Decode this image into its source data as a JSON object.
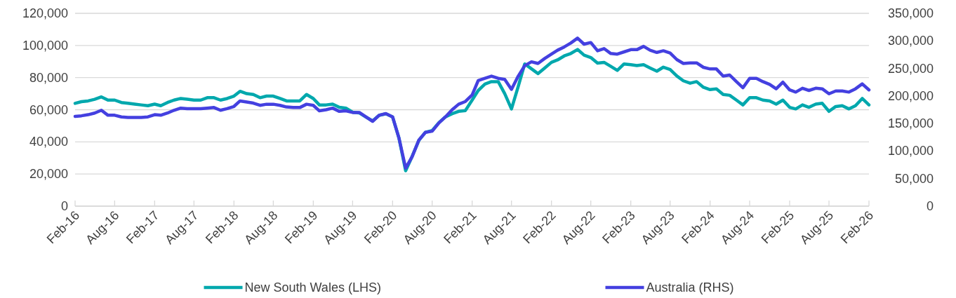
{
  "chart_data": {
    "type": "line",
    "x": [
      "2016-02",
      "2016-03",
      "2016-04",
      "2016-05",
      "2016-06",
      "2016-07",
      "2016-08",
      "2016-09",
      "2016-10",
      "2016-11",
      "2016-12",
      "2017-01",
      "2017-02",
      "2017-03",
      "2017-04",
      "2017-05",
      "2017-06",
      "2017-07",
      "2017-08",
      "2017-09",
      "2017-10",
      "2017-11",
      "2017-12",
      "2018-01",
      "2018-02",
      "2018-03",
      "2018-04",
      "2018-05",
      "2018-06",
      "2018-07",
      "2018-08",
      "2018-09",
      "2018-10",
      "2018-11",
      "2018-12",
      "2019-01",
      "2019-02",
      "2019-03",
      "2019-04",
      "2019-05",
      "2019-06",
      "2019-07",
      "2019-08",
      "2019-09",
      "2019-10",
      "2019-11",
      "2019-12",
      "2020-01",
      "2020-02",
      "2020-03",
      "2020-04",
      "2020-05",
      "2020-06",
      "2020-07",
      "2020-08",
      "2020-09",
      "2020-10",
      "2020-11",
      "2020-12",
      "2021-01",
      "2021-02",
      "2021-03",
      "2021-04",
      "2021-05",
      "2021-06",
      "2021-07",
      "2021-08",
      "2021-09",
      "2021-10",
      "2021-11",
      "2021-12",
      "2022-01",
      "2022-02",
      "2022-03",
      "2022-04",
      "2022-05",
      "2022-06",
      "2022-07",
      "2022-08",
      "2022-09",
      "2022-10",
      "2022-11",
      "2022-12",
      "2023-01",
      "2023-02",
      "2023-03",
      "2023-04",
      "2023-05",
      "2023-06",
      "2023-07",
      "2023-08",
      "2023-09",
      "2023-10",
      "2023-11",
      "2023-12",
      "2024-01",
      "2024-02",
      "2024-03",
      "2024-04",
      "2024-05",
      "2024-06",
      "2024-07",
      "2024-08",
      "2024-09",
      "2024-10",
      "2024-11",
      "2024-12",
      "2025-01",
      "2025-02",
      "2025-03",
      "2025-04",
      "2025-05",
      "2025-06",
      "2025-07",
      "2025-08",
      "2025-09",
      "2025-10",
      "2025-11",
      "2025-12",
      "2026-01",
      "2026-02"
    ],
    "xlim": [
      "2016-02",
      "2026-02"
    ],
    "xticks": [
      {
        "value": "2016-02",
        "label": "Feb-16"
      },
      {
        "value": "2016-08",
        "label": "Aug-16"
      },
      {
        "value": "2017-02",
        "label": "Feb-17"
      },
      {
        "value": "2017-08",
        "label": "Aug-17"
      },
      {
        "value": "2018-02",
        "label": "Feb-18"
      },
      {
        "value": "2018-08",
        "label": "Aug-18"
      },
      {
        "value": "2019-02",
        "label": "Feb-19"
      },
      {
        "value": "2019-08",
        "label": "Aug-19"
      },
      {
        "value": "2020-02",
        "label": "Feb-20"
      },
      {
        "value": "2020-08",
        "label": "Aug-20"
      },
      {
        "value": "2021-02",
        "label": "Feb-21"
      },
      {
        "value": "2021-08",
        "label": "Aug-21"
      },
      {
        "value": "2022-02",
        "label": "Feb-22"
      },
      {
        "value": "2022-08",
        "label": "Aug-22"
      },
      {
        "value": "2023-02",
        "label": "Feb-23"
      },
      {
        "value": "2023-08",
        "label": "Aug-23"
      },
      {
        "value": "2024-02",
        "label": "Feb-24"
      },
      {
        "value": "2024-08",
        "label": "Aug-24"
      },
      {
        "value": "2025-02",
        "label": "Feb-25"
      },
      {
        "value": "2025-08",
        "label": "Aug-25"
      },
      {
        "value": "2026-02",
        "label": "Feb-26"
      }
    ],
    "ylim": [
      0,
      120000
    ],
    "yticks": [
      0,
      {
        "value": 20000,
        "label": "20,000"
      },
      {
        "value": 40000,
        "label": "40,000"
      },
      {
        "value": 60000,
        "label": "60,000"
      },
      {
        "value": 80000,
        "label": "80,000"
      },
      {
        "value": 100000,
        "label": "100,000"
      },
      {
        "value": 120000,
        "label": "120,000"
      }
    ],
    "y2lim": [
      0,
      350000
    ],
    "y2ticks": [
      0,
      {
        "value": 50000,
        "label": "50,000"
      },
      {
        "value": 100000,
        "label": "100,000"
      },
      {
        "value": 150000,
        "label": "150,000"
      },
      {
        "value": 200000,
        "label": "200,000"
      },
      {
        "value": 250000,
        "label": "250,000"
      },
      {
        "value": 300000,
        "label": "300,000"
      },
      {
        "value": 350000,
        "label": "350,000"
      }
    ],
    "grid": "y",
    "legend": "bottom",
    "series": [
      {
        "name": "New South Wales (LHS)",
        "color": "#00a8ad",
        "values": [
          64000,
          65000,
          65500,
          66500,
          68000,
          66000,
          66000,
          64500,
          64000,
          63500,
          63000,
          62500,
          63500,
          62500,
          64500,
          66000,
          67000,
          66500,
          66000,
          66000,
          67500,
          67500,
          66000,
          67000,
          68500,
          71500,
          70000,
          69500,
          67500,
          68500,
          68500,
          67000,
          65500,
          65500,
          65500,
          69500,
          67000,
          63000,
          63000,
          63500,
          61500,
          61000,
          58500,
          58000,
          55500,
          53000,
          56500,
          57500,
          55500,
          42500,
          22000,
          31000,
          41000,
          46000,
          47000,
          52000,
          55500,
          57500,
          59000,
          59500,
          66000,
          72000,
          76000,
          77500,
          77500,
          70000,
          60500,
          74500,
          88500,
          85500,
          82500,
          86000,
          89500,
          91000,
          93500,
          95000,
          97500,
          94000,
          92500,
          89000,
          89500,
          87000,
          84500,
          88500,
          88000,
          87500,
          88000,
          86000,
          84000,
          86500,
          85000,
          81000,
          78000,
          76500,
          77500,
          74000,
          72500,
          73000,
          69500,
          69000,
          66000,
          63000,
          67500,
          67500,
          66000,
          65500,
          63500,
          66000,
          61500,
          60500,
          63000,
          61500,
          63500,
          64000,
          59000,
          62000,
          62500,
          60500,
          62500,
          67000,
          63000
        ]
      },
      {
        "name": "Australia (RHS)",
        "color": "#4440e0",
        "axis": "y2",
        "values": [
          163000,
          164000,
          166000,
          169000,
          174000,
          165000,
          165000,
          162000,
          161000,
          161000,
          161000,
          162000,
          166000,
          165000,
          169000,
          174000,
          178000,
          177000,
          177000,
          177000,
          178000,
          179000,
          174000,
          177000,
          181000,
          191000,
          189000,
          187000,
          183000,
          185000,
          185000,
          183000,
          180000,
          179000,
          179000,
          185000,
          183000,
          173000,
          175000,
          178000,
          172000,
          173000,
          170000,
          170000,
          162000,
          154000,
          165000,
          168000,
          162000,
          124000,
          69000,
          90000,
          120000,
          134000,
          136000,
          151000,
          162000,
          175000,
          185000,
          190000,
          202000,
          228000,
          232000,
          236000,
          232000,
          230000,
          212000,
          236000,
          255000,
          262000,
          259000,
          268000,
          276000,
          283000,
          289000,
          296000,
          305000,
          294000,
          297000,
          282000,
          286000,
          277000,
          276000,
          280000,
          284000,
          284000,
          290000,
          283000,
          279000,
          282000,
          278000,
          266000,
          259000,
          260000,
          260000,
          252000,
          249000,
          249000,
          236000,
          238000,
          226000,
          215000,
          232000,
          232000,
          226000,
          221000,
          213000,
          225000,
          211000,
          207000,
          214000,
          210000,
          214000,
          213000,
          204000,
          209000,
          209000,
          207000,
          213000,
          222000,
          211000
        ]
      }
    ]
  }
}
